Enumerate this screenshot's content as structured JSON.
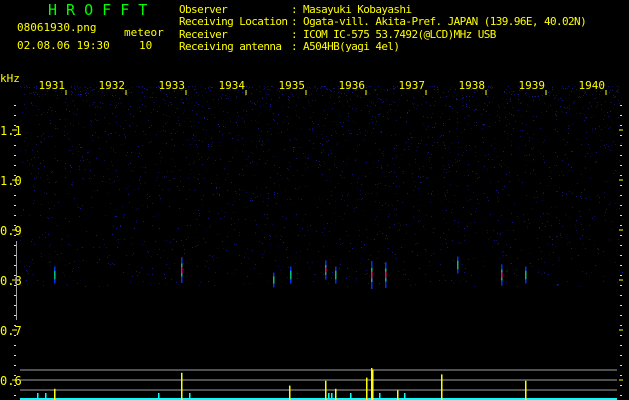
{
  "header": {
    "title": "H R O F F T",
    "filename": "08061930.png",
    "datetime": "02.08.06 19:30",
    "meteor_label": "meteor",
    "meteor_count": "10",
    "info": [
      {
        "label": "Observer",
        "value": ": Masayuki Kobayashi"
      },
      {
        "label": "Receiving Location",
        "value": ": Ogata-vill. Akita-Pref. JAPAN (139.96E, 40.02N)"
      },
      {
        "label": "Receiver",
        "value": ": ICOM IC-575 53.7492(@LCD)MHz USB"
      },
      {
        "label": "Receiving antenna",
        "value": ": A504HB(yagi 4el)"
      }
    ]
  },
  "colors": {
    "text": "#ffff00",
    "title": "#00ff00",
    "noise": "#1a1a8c",
    "echo_hot": "#ff0080",
    "bar_meteor": "#ffff00",
    "bar_base": "#00ffff",
    "grid": "#a0a0a0"
  },
  "chart_data": {
    "type": "heatmap",
    "ylabel": "kHz",
    "x_ticks": [
      "1931",
      "1932",
      "1933",
      "1934",
      "1935",
      "1936",
      "1937",
      "1938",
      "1939",
      "1940"
    ],
    "y_ticks": [
      "1.1",
      "1.0",
      "0.9",
      "0.8",
      "0.7",
      "0.6"
    ],
    "ylim": [
      0.56,
      1.18
    ],
    "echoes": [
      {
        "time": "19:30:48",
        "freq_khz": 0.81,
        "strength": 0.5
      },
      {
        "time": "19:32:55",
        "freq_khz": 0.82,
        "strength": 0.9
      },
      {
        "time": "19:34:27",
        "freq_khz": 0.8,
        "strength": 0.4
      },
      {
        "time": "19:34:44",
        "freq_khz": 0.81,
        "strength": 0.5
      },
      {
        "time": "19:35:19",
        "freq_khz": 0.82,
        "strength": 0.6
      },
      {
        "time": "19:35:29",
        "freq_khz": 0.81,
        "strength": 0.5
      },
      {
        "time": "19:36:05",
        "freq_khz": 0.81,
        "strength": 1.0
      },
      {
        "time": "19:36:19",
        "freq_khz": 0.81,
        "strength": 0.9
      },
      {
        "time": "19:37:31",
        "freq_khz": 0.83,
        "strength": 0.5
      },
      {
        "time": "19:38:15",
        "freq_khz": 0.81,
        "strength": 0.7
      },
      {
        "time": "19:38:39",
        "freq_khz": 0.81,
        "strength": 0.5
      }
    ],
    "meteor_bars": [
      {
        "time": "19:30:48",
        "level": 0.35
      },
      {
        "time": "19:32:55",
        "level": 0.85
      },
      {
        "time": "19:34:43",
        "level": 0.45
      },
      {
        "time": "19:35:19",
        "level": 0.6
      },
      {
        "time": "19:35:29",
        "level": 0.35
      },
      {
        "time": "19:36:00",
        "level": 0.7
      },
      {
        "time": "19:36:05",
        "level": 1.0
      },
      {
        "time": "19:36:06",
        "level": 0.95
      },
      {
        "time": "19:36:31",
        "level": 0.3
      },
      {
        "time": "19:37:15",
        "level": 0.8
      },
      {
        "time": "19:38:39",
        "level": 0.6
      }
    ]
  }
}
